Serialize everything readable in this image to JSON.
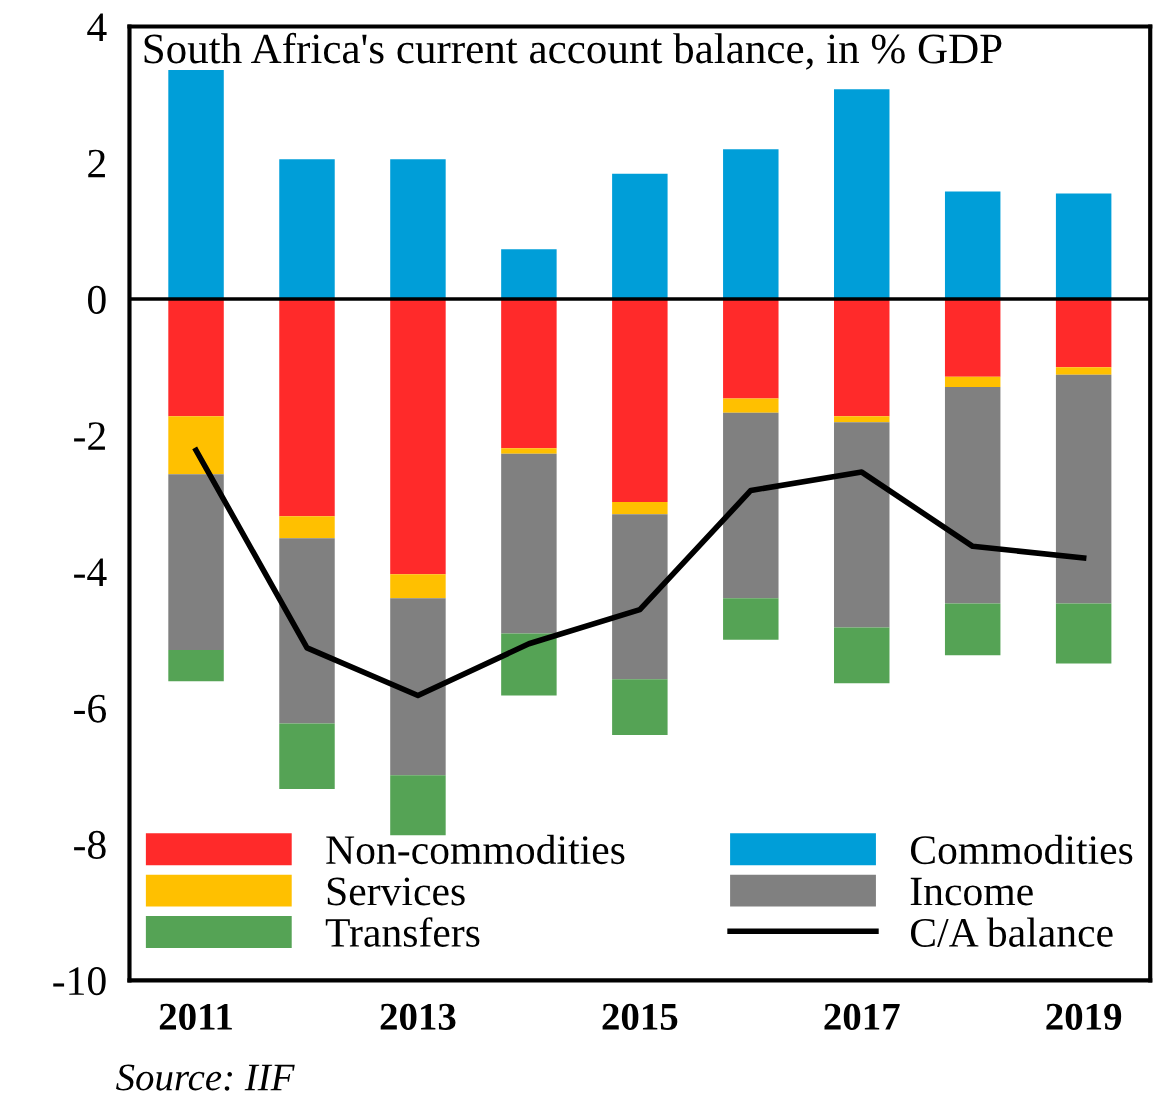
{
  "chart_data": {
    "type": "bar",
    "stacked": true,
    "title": "South Africa's current account balance, in % GDP",
    "categories": [
      "2011",
      null,
      "2013",
      null,
      "2015",
      null,
      "2017",
      null,
      "2019"
    ],
    "series": [
      {
        "name": "Non-commodities",
        "color": "#ff2a2a",
        "values": [
          -1.72,
          -3.19,
          -4.04,
          -2.19,
          -2.98,
          -1.46,
          -1.72,
          -1.14,
          -1.0
        ]
      },
      {
        "name": "Commodities",
        "color": "#009ed8",
        "values": [
          3.36,
          2.05,
          2.05,
          0.73,
          1.84,
          2.2,
          3.08,
          1.58,
          1.55
        ]
      },
      {
        "name": "Services",
        "color": "#ffc000",
        "values": [
          -0.85,
          -0.32,
          -0.35,
          -0.08,
          -0.18,
          -0.21,
          -0.09,
          -0.15,
          -0.11
        ]
      },
      {
        "name": "Income",
        "color": "#808080",
        "values": [
          -2.58,
          -2.72,
          -2.6,
          -2.64,
          -2.42,
          -2.72,
          -3.01,
          -3.18,
          -3.36
        ]
      },
      {
        "name": "Transfers",
        "color": "#55a355",
        "values": [
          -0.46,
          -0.96,
          -0.88,
          -0.91,
          -0.82,
          -0.61,
          -0.82,
          -0.76,
          -0.88
        ]
      },
      {
        "name": "C/A balance",
        "type": "line",
        "color": "#000000",
        "values": [
          -2.22,
          -5.12,
          -5.82,
          -5.06,
          -4.56,
          -2.81,
          -2.54,
          -3.63,
          -3.8
        ]
      }
    ],
    "ylim": [
      -10,
      4
    ],
    "yticks": [
      4,
      2,
      0,
      -2,
      -4,
      -6,
      -8,
      -10
    ],
    "ref_lines": [
      {
        "axis": "y",
        "value": 0,
        "color": "#000000"
      }
    ],
    "legend": "bottom",
    "grid": false,
    "annotations": [
      "Source: IIF"
    ]
  }
}
